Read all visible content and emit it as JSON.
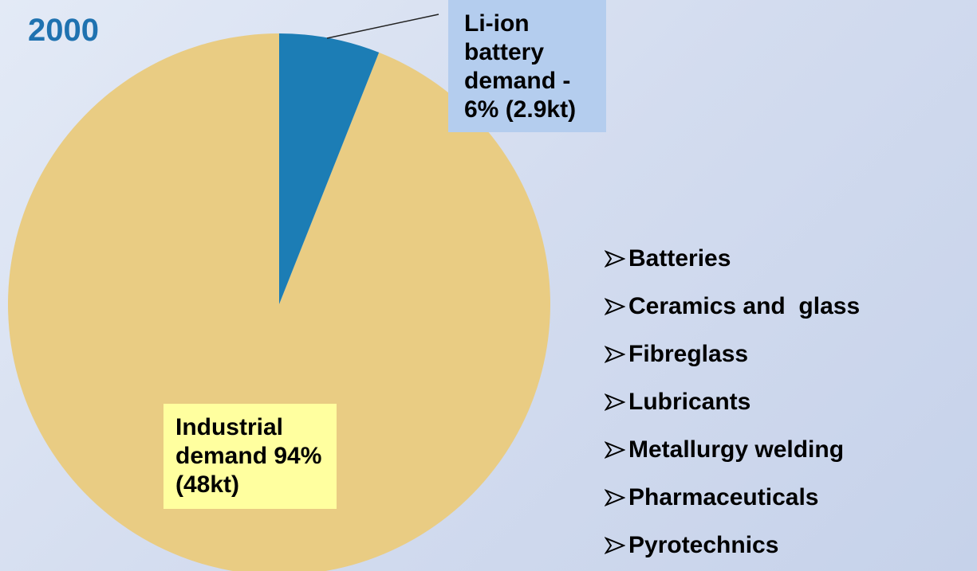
{
  "chart_data": {
    "type": "pie",
    "title": "2000",
    "categories": [
      "Li-ion battery demand - 6% (2.9kt)",
      "Industrial demand 94%(48kt)"
    ],
    "values": [
      6,
      94
    ],
    "colors": [
      "#1c7db5",
      "#e9cc83"
    ]
  },
  "uses": [
    "Batteries",
    "Ceramics and  glass",
    "Fibreglass",
    "Lubricants",
    "Metallurgy welding",
    "Pharmaceuticals",
    "Pyrotechnics"
  ]
}
